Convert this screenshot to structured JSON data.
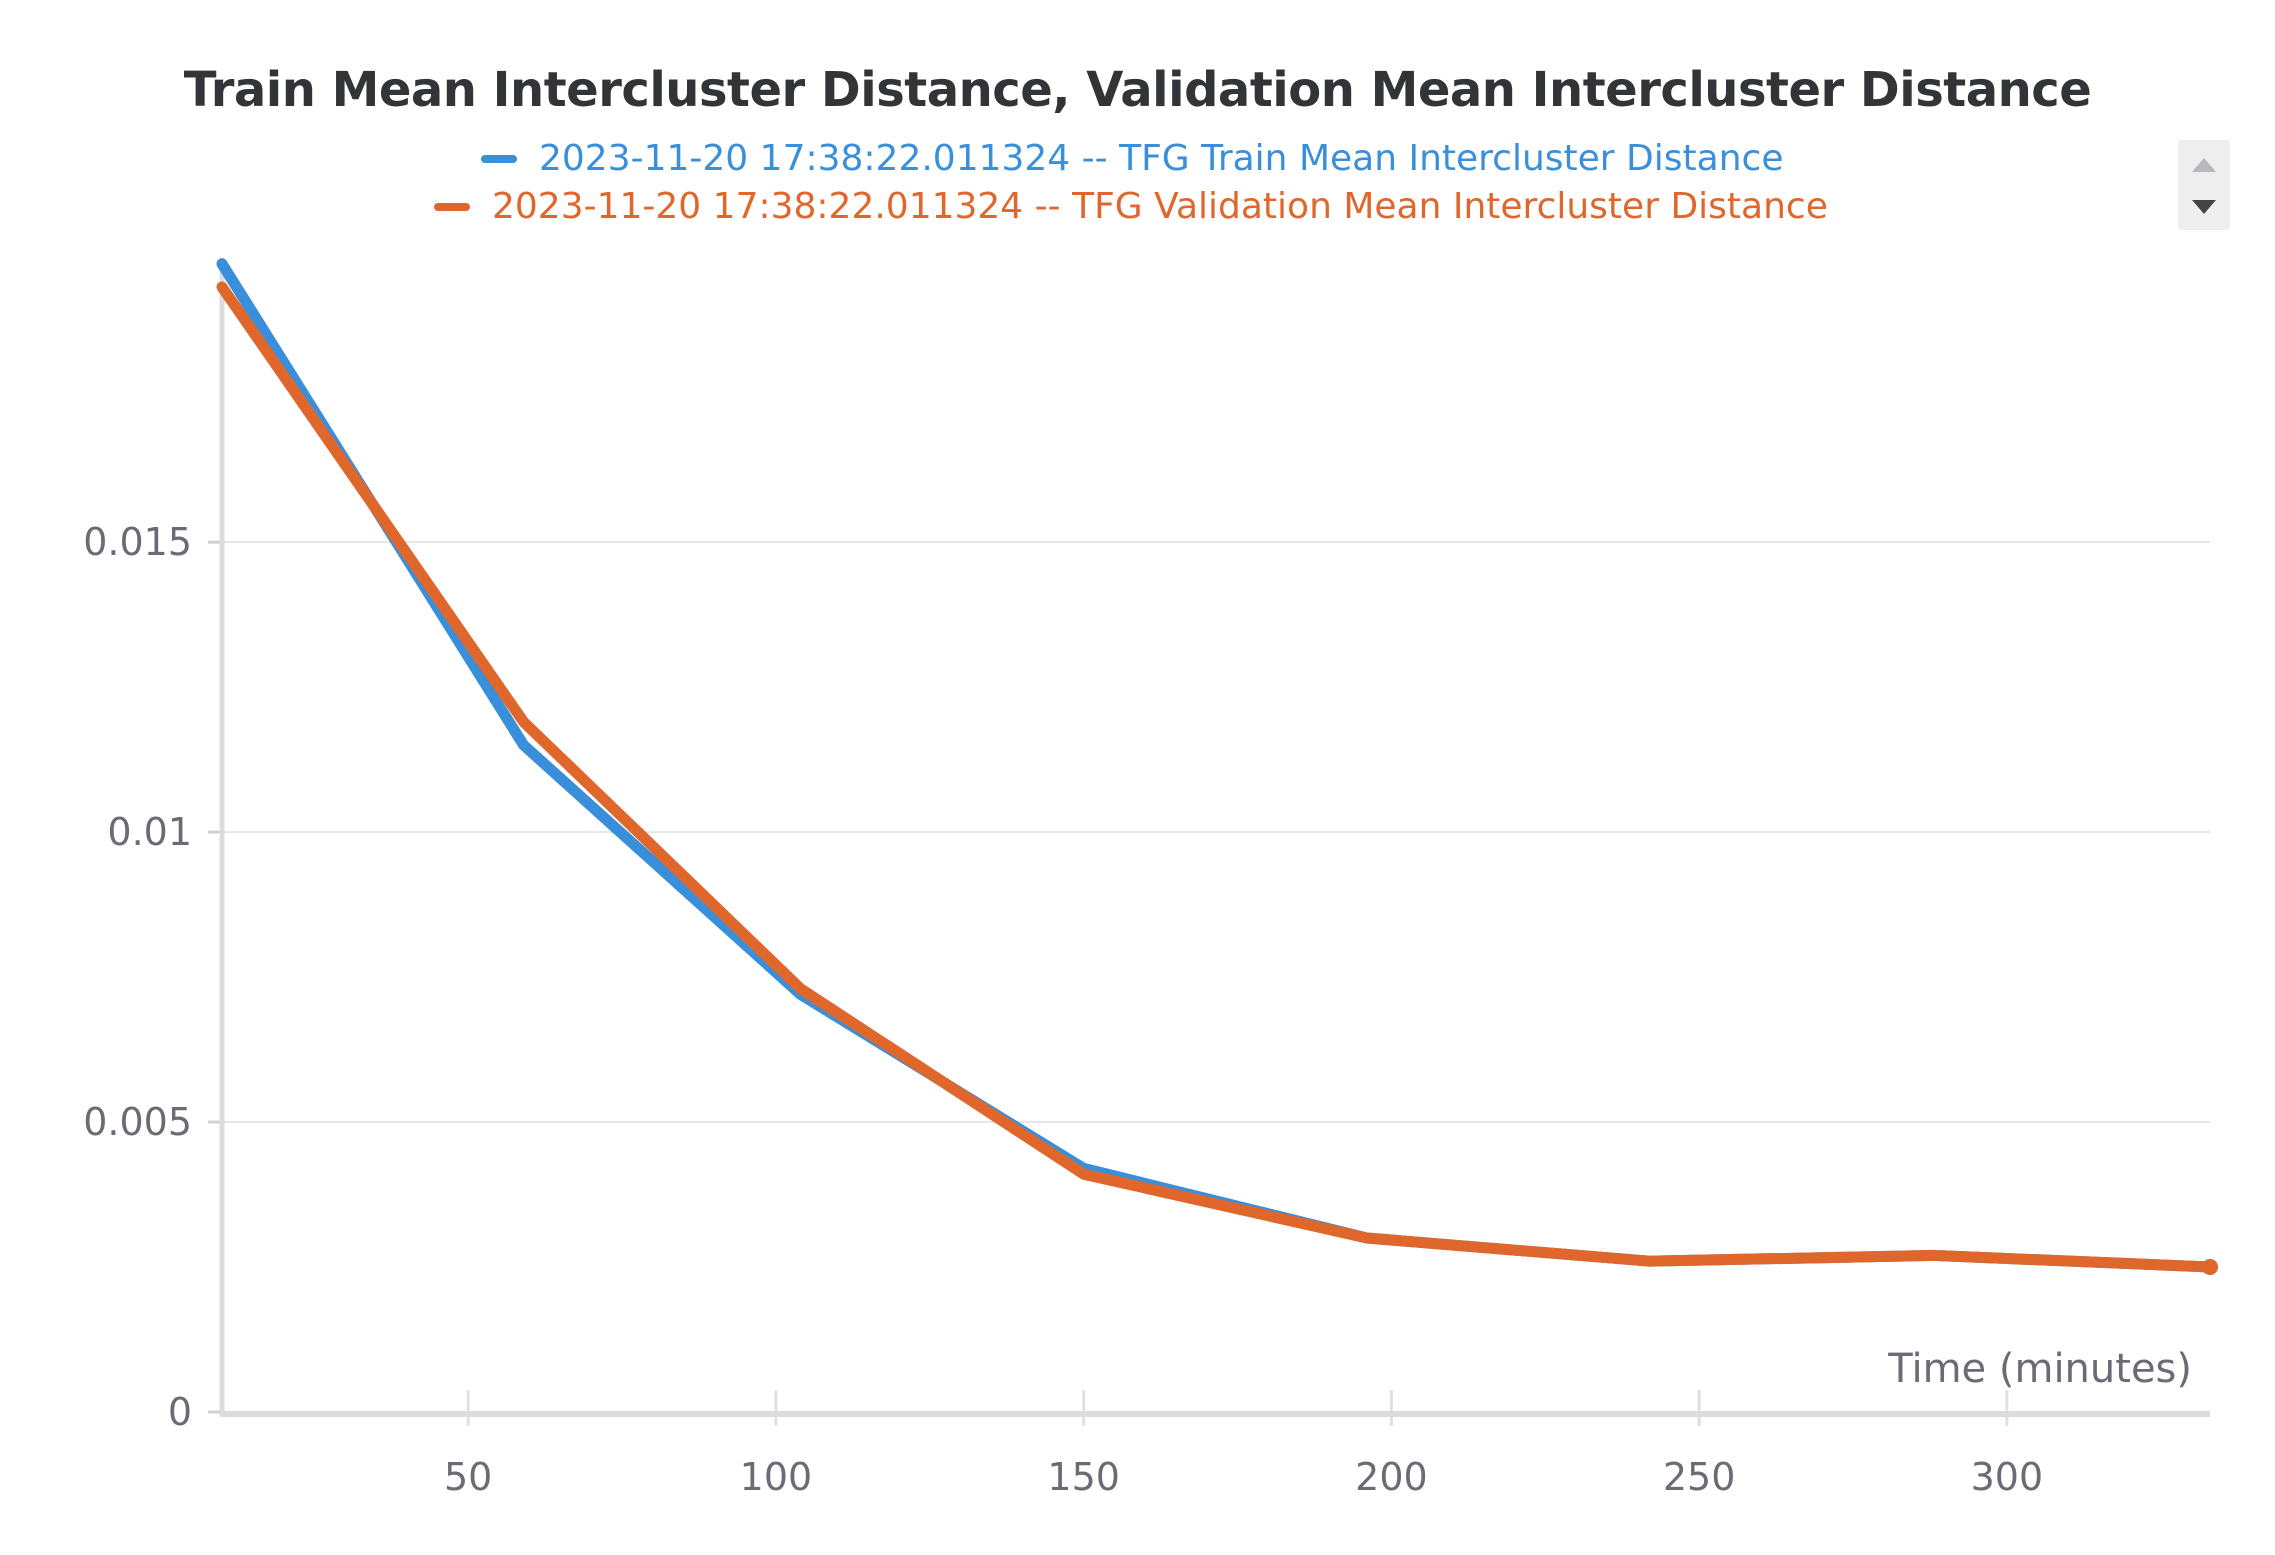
{
  "chart_data": {
    "type": "line",
    "title": "Train Mean Intercluster Distance, Validation Mean Intercluster Distance",
    "xlabel": "Time (minutes)",
    "ylabel": "",
    "xlim": [
      10,
      333
    ],
    "ylim": [
      0,
      0.0199
    ],
    "x_ticks": [
      50,
      100,
      150,
      200,
      250,
      300
    ],
    "x_tick_labels": [
      "50",
      "100",
      "150",
      "200",
      "250",
      "300"
    ],
    "y_ticks": [
      0,
      0.005,
      0.01,
      0.015
    ],
    "y_tick_labels": [
      "0",
      "0.005",
      "0.01",
      "0.015"
    ],
    "grid": true,
    "legend_position": "top-center",
    "series": [
      {
        "name": "2023-11-20 17:38:22.011324 -- TFG Train Mean Intercluster Distance",
        "color": "#3a8fdb",
        "x": [
          10,
          59,
          104,
          150,
          196,
          242,
          288,
          333
        ],
        "y": [
          0.0198,
          0.0115,
          0.0072,
          0.0042,
          0.003,
          0.0026,
          0.0027,
          0.0025
        ]
      },
      {
        "name": "2023-11-20 17:38:22.011324 -- TFG Validation Mean Intercluster Distance",
        "color": "#e0672c",
        "x": [
          10,
          59,
          104,
          150,
          196,
          242,
          288,
          333
        ],
        "y": [
          0.0194,
          0.0119,
          0.0073,
          0.0041,
          0.003,
          0.0026,
          0.0027,
          0.0025
        ]
      }
    ]
  }
}
